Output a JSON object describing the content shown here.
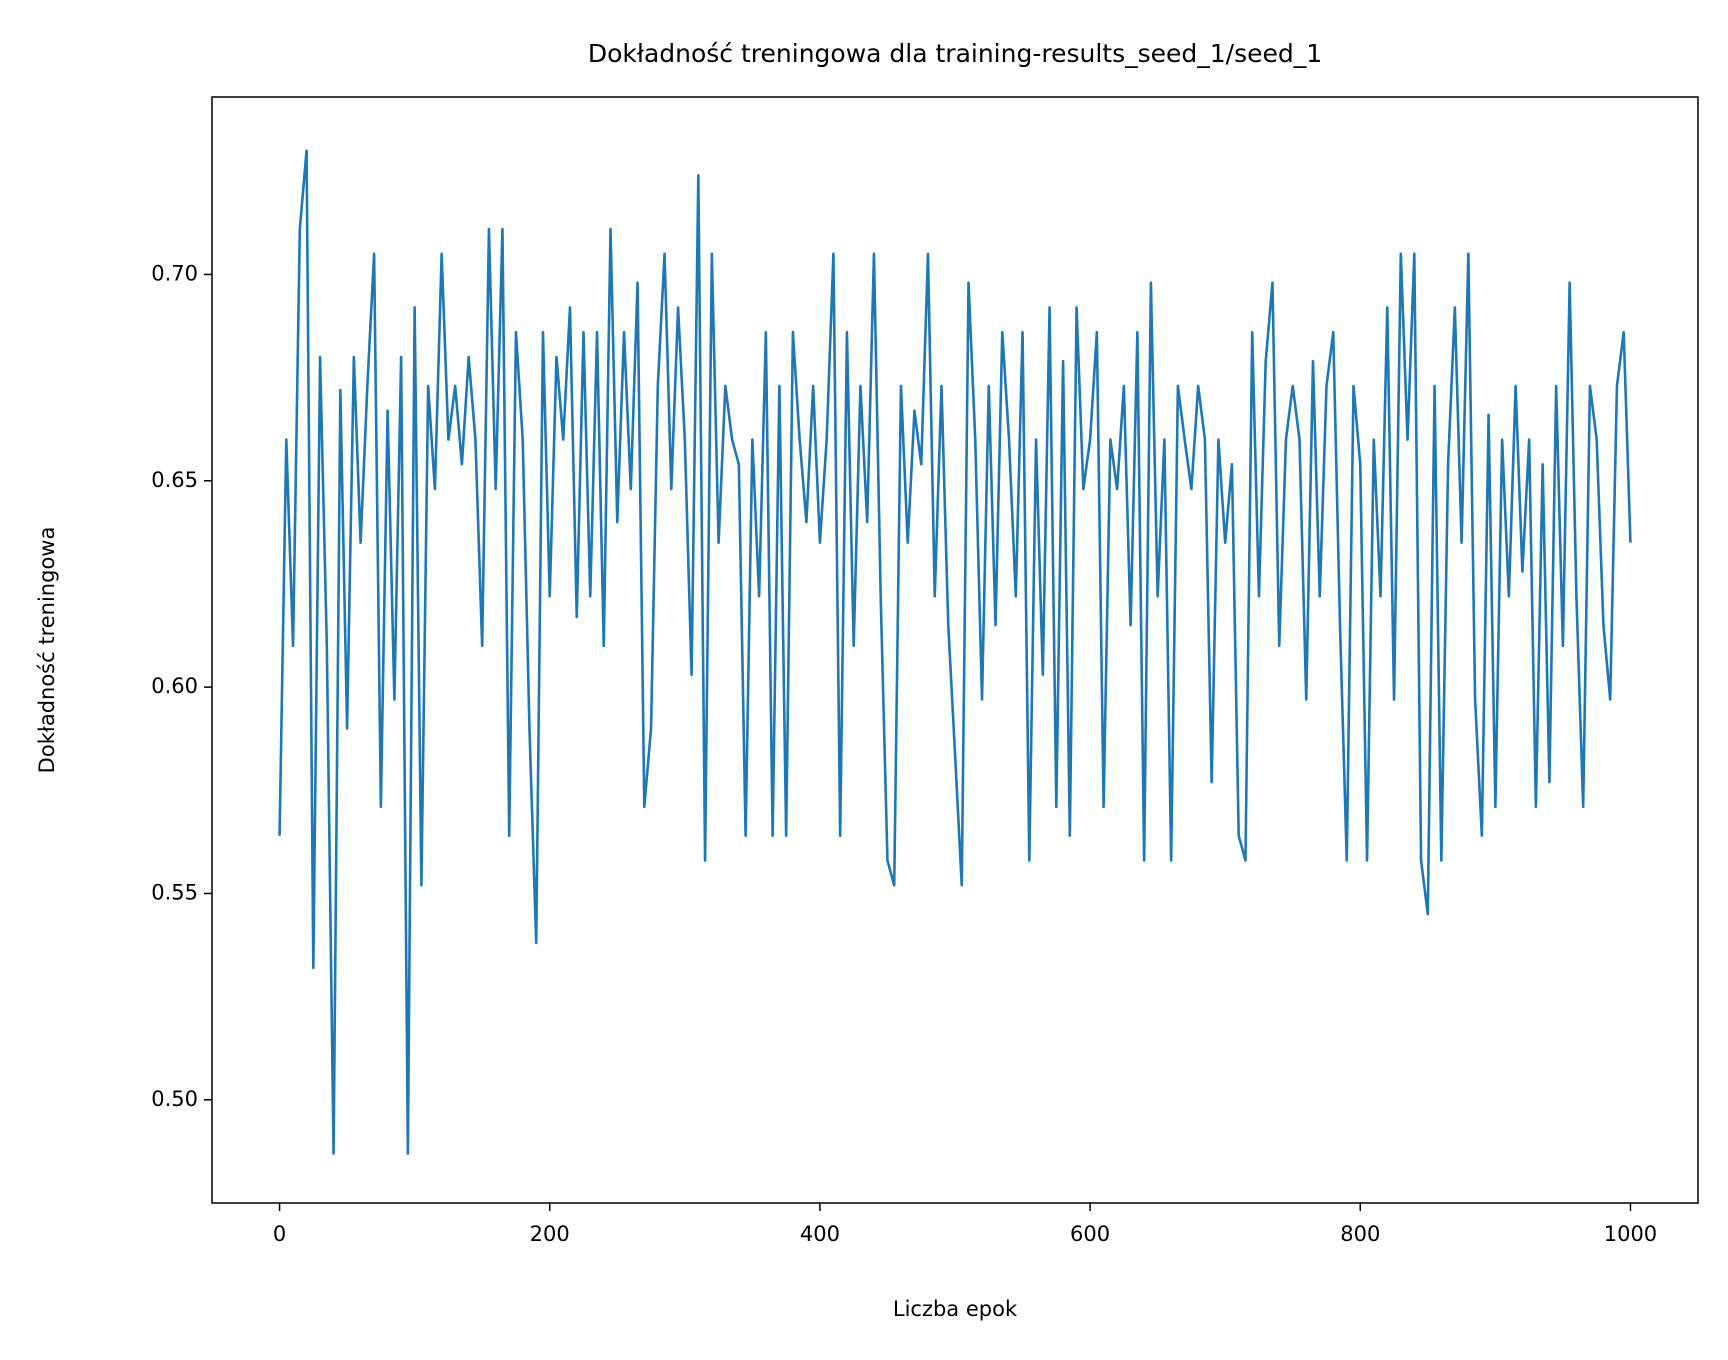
{
  "chart_data": {
    "type": "line",
    "title": "Dokładność treningowa dla training-results_seed_1/seed_1",
    "x_label": "Liczba epok",
    "y_label": "Dokładność treningowa",
    "color": "#1f77b4",
    "xlim": [
      -50,
      1050
    ],
    "xticks": [
      0,
      200,
      400,
      600,
      800,
      1000
    ],
    "ylim": [
      0.475,
      0.743
    ],
    "yticks": [
      {
        "value": 0.5,
        "label": "0.50"
      },
      {
        "value": 0.55,
        "label": "0.55"
      },
      {
        "value": 0.6,
        "label": "0.60"
      },
      {
        "value": 0.65,
        "label": "0.65"
      },
      {
        "value": 0.7,
        "label": "0.70"
      }
    ],
    "x": [
      0,
      5,
      10,
      15,
      20,
      25,
      30,
      35,
      40,
      45,
      50,
      55,
      60,
      65,
      70,
      75,
      80,
      85,
      90,
      95,
      100,
      105,
      110,
      115,
      120,
      125,
      130,
      135,
      140,
      145,
      150,
      155,
      160,
      165,
      170,
      175,
      180,
      185,
      190,
      195,
      200,
      205,
      210,
      215,
      220,
      225,
      230,
      235,
      240,
      245,
      250,
      255,
      260,
      265,
      270,
      275,
      280,
      285,
      290,
      295,
      300,
      305,
      310,
      315,
      320,
      325,
      330,
      335,
      340,
      345,
      350,
      355,
      360,
      365,
      370,
      375,
      380,
      385,
      390,
      395,
      400,
      405,
      410,
      415,
      420,
      425,
      430,
      435,
      440,
      445,
      450,
      455,
      460,
      465,
      470,
      475,
      480,
      485,
      490,
      495,
      500,
      505,
      510,
      515,
      520,
      525,
      530,
      535,
      540,
      545,
      550,
      555,
      560,
      565,
      570,
      575,
      580,
      585,
      590,
      595,
      600,
      605,
      610,
      615,
      620,
      625,
      630,
      635,
      640,
      645,
      650,
      655,
      660,
      665,
      670,
      675,
      680,
      685,
      690,
      695,
      700,
      705,
      710,
      715,
      720,
      725,
      730,
      735,
      740,
      745,
      750,
      755,
      760,
      765,
      770,
      775,
      780,
      785,
      790,
      795,
      800,
      805,
      810,
      815,
      820,
      825,
      830,
      835,
      840,
      845,
      850,
      855,
      860,
      865,
      870,
      875,
      880,
      885,
      890,
      895,
      900,
      905,
      910,
      915,
      920,
      925,
      930,
      935,
      940,
      945,
      950,
      955,
      960,
      965,
      970,
      975,
      980,
      985,
      990,
      995,
      1000
    ],
    "values": [
      0.564,
      0.66,
      0.61,
      0.711,
      0.73,
      0.532,
      0.68,
      0.61,
      0.487,
      0.672,
      0.59,
      0.68,
      0.635,
      0.673,
      0.705,
      0.571,
      0.667,
      0.597,
      0.68,
      0.487,
      0.692,
      0.552,
      0.673,
      0.648,
      0.705,
      0.66,
      0.673,
      0.654,
      0.68,
      0.66,
      0.61,
      0.711,
      0.648,
      0.711,
      0.564,
      0.686,
      0.66,
      0.59,
      0.538,
      0.686,
      0.622,
      0.68,
      0.66,
      0.692,
      0.617,
      0.686,
      0.622,
      0.686,
      0.61,
      0.711,
      0.64,
      0.686,
      0.648,
      0.698,
      0.571,
      0.59,
      0.673,
      0.705,
      0.648,
      0.692,
      0.66,
      0.603,
      0.724,
      0.558,
      0.705,
      0.635,
      0.673,
      0.66,
      0.654,
      0.564,
      0.66,
      0.622,
      0.686,
      0.564,
      0.673,
      0.564,
      0.686,
      0.66,
      0.64,
      0.673,
      0.635,
      0.66,
      0.705,
      0.564,
      0.686,
      0.61,
      0.673,
      0.64,
      0.705,
      0.622,
      0.558,
      0.552,
      0.673,
      0.635,
      0.667,
      0.654,
      0.705,
      0.622,
      0.673,
      0.615,
      0.584,
      0.552,
      0.698,
      0.66,
      0.597,
      0.673,
      0.615,
      0.686,
      0.66,
      0.622,
      0.686,
      0.558,
      0.66,
      0.603,
      0.692,
      0.571,
      0.679,
      0.564,
      0.692,
      0.648,
      0.66,
      0.686,
      0.571,
      0.66,
      0.648,
      0.673,
      0.615,
      0.686,
      0.558,
      0.698,
      0.622,
      0.66,
      0.558,
      0.673,
      0.66,
      0.648,
      0.673,
      0.66,
      0.577,
      0.66,
      0.635,
      0.654,
      0.564,
      0.558,
      0.686,
      0.622,
      0.679,
      0.698,
      0.61,
      0.66,
      0.673,
      0.66,
      0.597,
      0.679,
      0.622,
      0.673,
      0.686,
      0.615,
      0.558,
      0.673,
      0.654,
      0.558,
      0.66,
      0.622,
      0.692,
      0.597,
      0.705,
      0.66,
      0.705,
      0.558,
      0.545,
      0.673,
      0.558,
      0.654,
      0.692,
      0.635,
      0.705,
      0.597,
      0.564,
      0.666,
      0.571,
      0.66,
      0.622,
      0.673,
      0.628,
      0.66,
      0.571,
      0.654,
      0.577,
      0.673,
      0.61,
      0.698,
      0.622,
      0.571,
      0.673,
      0.66,
      0.615,
      0.597,
      0.673,
      0.686,
      0.635
    ]
  }
}
